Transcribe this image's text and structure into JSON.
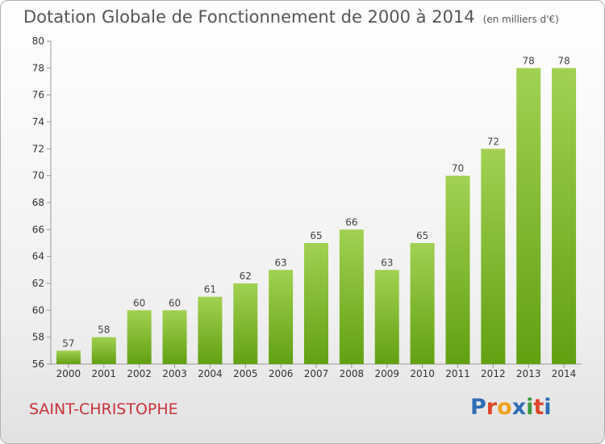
{
  "title": "Dotation Globale de Fonctionnement de 2000 à 2014",
  "subtitle": "(en milliers d'€)",
  "commune": "SAINT-CHRISTOPHE",
  "logo": {
    "text": "Proxiti",
    "colors": [
      "#2f6db5",
      "#e0462b",
      "#f0a11b",
      "#2f6db5",
      "#3a9a3c",
      "#e0462b",
      "#2f6db5"
    ]
  },
  "chart_data": {
    "type": "bar",
    "categories": [
      "2000",
      "2001",
      "2002",
      "2003",
      "2004",
      "2005",
      "2006",
      "2007",
      "2008",
      "2009",
      "2010",
      "2011",
      "2012",
      "2013",
      "2014"
    ],
    "values": [
      57,
      58,
      60,
      60,
      61,
      62,
      63,
      65,
      66,
      63,
      65,
      70,
      72,
      78,
      78
    ],
    "ylim": [
      56,
      80
    ],
    "yticks": [
      56,
      58,
      60,
      62,
      64,
      66,
      68,
      70,
      72,
      74,
      76,
      78,
      80
    ],
    "grid": false,
    "bar_color": "#7fb52e"
  }
}
